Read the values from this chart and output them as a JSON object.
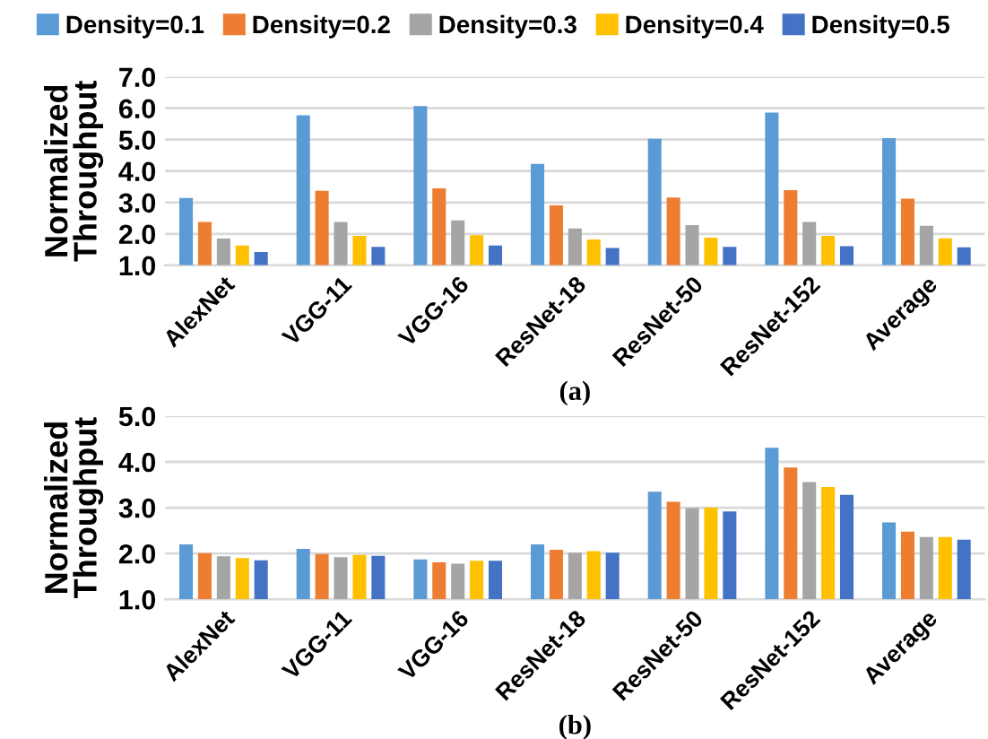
{
  "chart_data": [
    {
      "type": "bar",
      "xlabel": "(a)",
      "ylabel": "Normalized\nThroughput",
      "categories": [
        "AlexNet",
        "VGG-11",
        "VGG-16",
        "ResNet-18",
        "ResNet-50",
        "ResNet-152",
        "Average"
      ],
      "series": [
        {
          "name": "Density=0.1",
          "color": "#5b9bd5",
          "values": [
            3.14,
            5.78,
            6.07,
            4.23,
            5.03,
            5.86,
            5.05
          ]
        },
        {
          "name": "Density=0.2",
          "color": "#ed7d31",
          "values": [
            2.38,
            3.37,
            3.45,
            2.91,
            3.16,
            3.39,
            3.12
          ]
        },
        {
          "name": "Density=0.3",
          "color": "#a5a5a5",
          "values": [
            1.85,
            2.38,
            2.43,
            2.17,
            2.28,
            2.38,
            2.26
          ]
        },
        {
          "name": "Density=0.4",
          "color": "#ffc000",
          "values": [
            1.63,
            1.94,
            1.96,
            1.82,
            1.88,
            1.94,
            1.86
          ]
        },
        {
          "name": "Density=0.5",
          "color": "#4472c4",
          "values": [
            1.42,
            1.59,
            1.63,
            1.55,
            1.59,
            1.61,
            1.57
          ]
        }
      ],
      "ylim": [
        1,
        7
      ],
      "yticks": [
        {
          "value": 1,
          "label": "1.0"
        },
        {
          "value": 2,
          "label": "2.0"
        },
        {
          "value": 3,
          "label": "3.0"
        },
        {
          "value": 4,
          "label": "4.0"
        },
        {
          "value": 5,
          "label": "5.0"
        },
        {
          "value": 6,
          "label": "6.0"
        },
        {
          "value": 7,
          "label": "7.0"
        }
      ],
      "grid": "y",
      "legend": "top"
    },
    {
      "type": "bar",
      "xlabel": "(b)",
      "ylabel": "Normalized\nThroughput",
      "categories": [
        "AlexNet",
        "VGG-11",
        "VGG-16",
        "ResNet-18",
        "ResNet-50",
        "ResNet-152",
        "Average"
      ],
      "series": [
        {
          "color": "#5b9bd5",
          "values": [
            2.2,
            2.1,
            1.87,
            2.2,
            3.35,
            4.31,
            2.68
          ]
        },
        {
          "color": "#ed7d31",
          "values": [
            2.01,
            1.99,
            1.81,
            2.08,
            3.13,
            3.88,
            2.48
          ]
        },
        {
          "color": "#a5a5a5",
          "values": [
            1.94,
            1.92,
            1.78,
            2.02,
            2.99,
            3.56,
            2.36
          ]
        },
        {
          "color": "#ffc000",
          "values": [
            1.9,
            1.97,
            1.84,
            2.05,
            3.0,
            3.45,
            2.36
          ]
        },
        {
          "color": "#4472c4",
          "values": [
            1.85,
            1.95,
            1.84,
            2.02,
            2.92,
            3.28,
            2.3
          ]
        }
      ],
      "ylim": [
        1,
        5
      ],
      "yticks": [
        {
          "value": 1,
          "label": "1.0"
        },
        {
          "value": 2,
          "label": "2.0"
        },
        {
          "value": 3,
          "label": "3.0"
        },
        {
          "value": 4,
          "label": "4.0"
        },
        {
          "value": 5,
          "label": "5.0"
        }
      ],
      "grid": "y"
    }
  ]
}
